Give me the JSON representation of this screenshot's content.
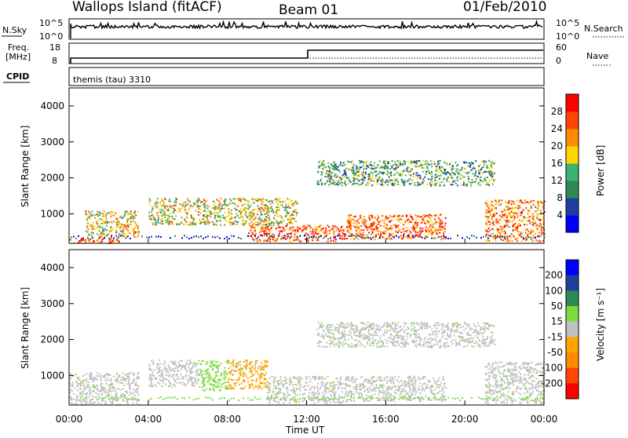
{
  "header": {
    "station": "Wallops Island (fitACF)",
    "beam": "Beam 01",
    "date": "01/Feb/2010"
  },
  "strips": {
    "nsky_label": "N.Sky",
    "nsky_ticks": [
      "10^5",
      "10^0"
    ],
    "nsearch_label": "N.Search",
    "nsearch_ticks": [
      "10^5",
      "10^0"
    ],
    "freq_label_1": "Freq.",
    "freq_label_2": "[MHz]",
    "freq_ticks": [
      "18",
      "8"
    ],
    "nave_label": "Nave",
    "nave_ticks": [
      "60",
      "0"
    ],
    "cpid_label": "CPID",
    "cpid_text": "themis (tau) 3310"
  },
  "colors": {
    "power": [
      "#0000ff",
      "#1f3f9f",
      "#2e8b57",
      "#3cb371",
      "#ffd700",
      "#ff8c00",
      "#ff4500",
      "#ff0000"
    ],
    "velocity": [
      "#ff0000",
      "#ff4500",
      "#ff8c00",
      "#ffa500",
      "#c0c0c0",
      "#7fdc3f",
      "#2e8b57",
      "#1f3f9f",
      "#0000ff"
    ]
  },
  "chart_data": [
    {
      "type": "heatmap",
      "name": "power",
      "xlabel": "Time UT",
      "ylabel": "Slant Range [km]",
      "xlim_hours": [
        0,
        24
      ],
      "ylim": [
        180,
        4500
      ],
      "x_ticks": [
        "00:00",
        "04:00",
        "08:00",
        "12:00",
        "16:00",
        "20:00",
        "00:00"
      ],
      "y_ticks": [
        1000,
        2000,
        3000,
        4000
      ],
      "colorbar": {
        "label": "Power [dB]",
        "ticks": [
          "4",
          "8",
          "12",
          "16",
          "20",
          "24",
          "28"
        ]
      },
      "regions": [
        {
          "t0": 0.0,
          "t1": 2.5,
          "r0": 200,
          "r1": 350,
          "level": 0.85
        },
        {
          "t0": 0.8,
          "t1": 3.5,
          "r0": 350,
          "r1": 1100,
          "level": 0.6
        },
        {
          "t0": 4.0,
          "t1": 11.5,
          "r0": 700,
          "r1": 1450,
          "level": 0.55
        },
        {
          "t0": 9.0,
          "t1": 14.0,
          "r0": 250,
          "r1": 700,
          "level": 0.85
        },
        {
          "t0": 14.0,
          "t1": 19.0,
          "r0": 300,
          "r1": 1000,
          "level": 0.8
        },
        {
          "t0": 12.5,
          "t1": 21.5,
          "r0": 1800,
          "r1": 2500,
          "level": 0.35
        },
        {
          "t0": 21.0,
          "t1": 24.0,
          "r0": 250,
          "r1": 1400,
          "level": 0.75
        }
      ]
    },
    {
      "type": "heatmap",
      "name": "velocity",
      "xlabel": "Time UT",
      "ylabel": "Slant Range [km]",
      "xlim_hours": [
        0,
        24
      ],
      "ylim": [
        180,
        4500
      ],
      "x_ticks": [
        "00:00",
        "04:00",
        "08:00",
        "12:00",
        "16:00",
        "20:00",
        "00:00"
      ],
      "y_ticks": [
        1000,
        2000,
        3000,
        4000
      ],
      "colorbar": {
        "label": "Velocity [m s⁻¹]",
        "ticks": [
          "200",
          "100",
          "50",
          "15",
          "-15",
          "-50",
          "-100",
          "-200"
        ]
      },
      "regions": [
        {
          "t0": 0.0,
          "t1": 3.5,
          "r0": 200,
          "r1": 1100,
          "vel": "gray"
        },
        {
          "t0": 4.0,
          "t1": 6.5,
          "r0": 700,
          "r1": 1450,
          "vel": "gray"
        },
        {
          "t0": 6.5,
          "t1": 8.0,
          "r0": 600,
          "r1": 1450,
          "vel": "green"
        },
        {
          "t0": 8.0,
          "t1": 10.0,
          "r0": 650,
          "r1": 1450,
          "vel": "orange"
        },
        {
          "t0": 10.0,
          "t1": 14.0,
          "r0": 250,
          "r1": 1000,
          "vel": "gray"
        },
        {
          "t0": 14.0,
          "t1": 19.0,
          "r0": 300,
          "r1": 1000,
          "vel": "gray"
        },
        {
          "t0": 12.5,
          "t1": 21.5,
          "r0": 1800,
          "r1": 2500,
          "vel": "gray"
        },
        {
          "t0": 21.0,
          "t1": 24.0,
          "r0": 250,
          "r1": 1400,
          "vel": "gray"
        }
      ]
    }
  ]
}
